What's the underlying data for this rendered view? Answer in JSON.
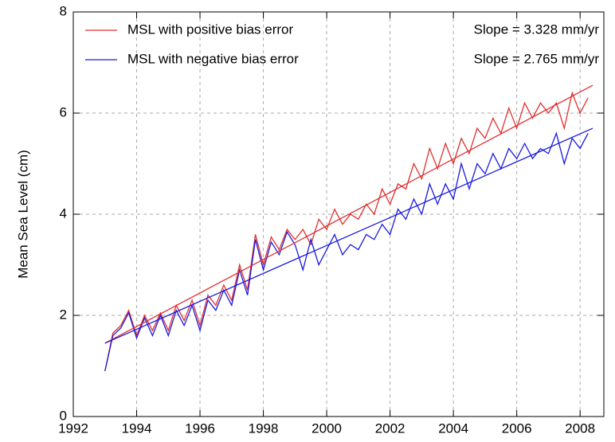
{
  "chart_data": {
    "type": "line",
    "y_label": "Mean Sea Level (cm)",
    "xlim": [
      1992,
      2008.75
    ],
    "xticks": [
      1992,
      1994,
      1996,
      1998,
      2000,
      2002,
      2004,
      2006,
      2008
    ],
    "ylim": [
      0,
      8
    ],
    "yticks": [
      0,
      2,
      4,
      6,
      8
    ],
    "grid": true,
    "x": [
      1993.0,
      1993.25,
      1993.5,
      1993.75,
      1994.0,
      1994.25,
      1994.5,
      1994.75,
      1995.0,
      1995.25,
      1995.5,
      1995.75,
      1996.0,
      1996.25,
      1996.5,
      1996.75,
      1997.0,
      1997.25,
      1997.5,
      1997.75,
      1998.0,
      1998.25,
      1998.5,
      1998.75,
      1999.0,
      1999.25,
      1999.5,
      1999.75,
      2000.0,
      2000.25,
      2000.5,
      2000.75,
      2001.0,
      2001.25,
      2001.5,
      2001.75,
      2002.0,
      2002.25,
      2002.5,
      2002.75,
      2003.0,
      2003.25,
      2003.5,
      2003.75,
      2004.0,
      2004.25,
      2004.5,
      2004.75,
      2005.0,
      2005.25,
      2005.5,
      2005.75,
      2006.0,
      2006.25,
      2006.5,
      2006.75,
      2007.0,
      2007.25,
      2007.5,
      2007.75,
      2008.0,
      2008.25
    ],
    "series": [
      {
        "name": "MSL with positive bias error",
        "color": "#e03030",
        "values": [
          0.9,
          1.65,
          1.8,
          2.1,
          1.6,
          2.0,
          1.7,
          2.05,
          1.7,
          2.2,
          1.9,
          2.3,
          1.8,
          2.4,
          2.2,
          2.6,
          2.3,
          3.0,
          2.5,
          3.6,
          3.0,
          3.55,
          3.3,
          3.7,
          3.5,
          3.7,
          3.4,
          3.9,
          3.7,
          4.1,
          3.8,
          4.0,
          3.9,
          4.2,
          4.0,
          4.5,
          4.2,
          4.6,
          4.5,
          5.0,
          4.7,
          5.3,
          4.9,
          5.4,
          5.0,
          5.5,
          5.2,
          5.7,
          5.5,
          5.9,
          5.6,
          6.1,
          5.7,
          6.2,
          5.9,
          6.2,
          6.0,
          6.2,
          5.7,
          6.4,
          6.0,
          6.3
        ]
      },
      {
        "name": "MSL with negative bias error",
        "color": "#1a1ae0",
        "values": [
          0.9,
          1.6,
          1.75,
          2.05,
          1.55,
          1.95,
          1.6,
          2.0,
          1.6,
          2.1,
          1.8,
          2.2,
          1.7,
          2.3,
          2.1,
          2.5,
          2.2,
          2.9,
          2.4,
          3.5,
          2.9,
          3.45,
          3.2,
          3.65,
          3.4,
          2.9,
          3.5,
          3.0,
          3.3,
          3.6,
          3.2,
          3.4,
          3.3,
          3.6,
          3.5,
          3.8,
          3.6,
          4.1,
          3.9,
          4.3,
          4.0,
          4.6,
          4.2,
          4.6,
          4.3,
          5.0,
          4.5,
          5.0,
          4.8,
          5.2,
          4.9,
          5.3,
          5.1,
          5.4,
          5.1,
          5.3,
          5.2,
          5.6,
          5.0,
          5.5,
          5.3,
          5.6
        ]
      }
    ],
    "trends": [
      {
        "color": "#e03030",
        "x": [
          1993,
          2008.4
        ],
        "values": [
          1.45,
          6.55
        ],
        "label": "Slope = 3.328 mm/yr"
      },
      {
        "color": "#1a1ae0",
        "x": [
          1993,
          2008.4
        ],
        "values": [
          1.45,
          5.7
        ],
        "label": "Slope = 2.765 mm/yr"
      }
    ]
  }
}
